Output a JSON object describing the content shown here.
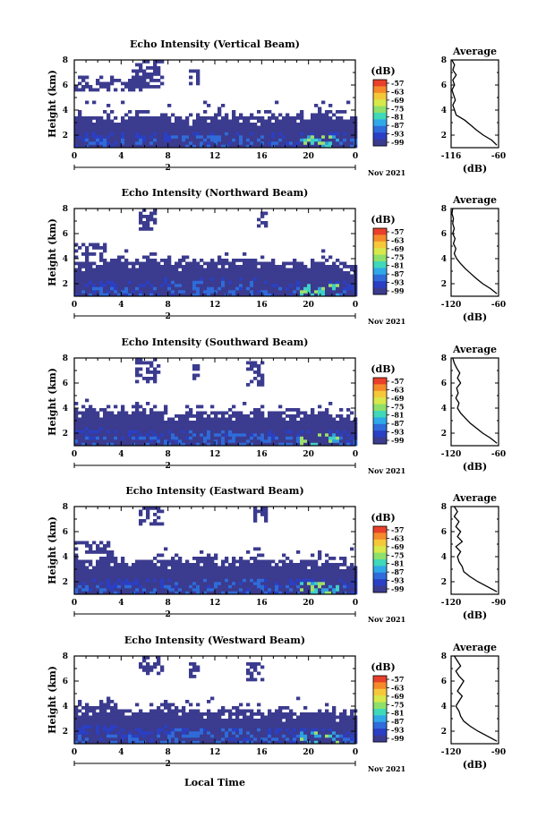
{
  "figure": {
    "x_axis_label": "Local Time",
    "date_label": "Nov 2021",
    "day_label": "2",
    "y_axis_label": "Height (km)",
    "colorbar_unit": "(dB)",
    "average_title": "Average",
    "average_xlabel": "(dB)"
  },
  "chart_data": [
    {
      "type": "heatmap",
      "title": "Echo Intensity (Vertical Beam)",
      "ylabel": "Height (km)",
      "x_ticks": [
        "0",
        "4",
        "8",
        "12",
        "16",
        "20",
        "0"
      ],
      "y_ticks": [
        "2",
        "4",
        "6",
        "8"
      ],
      "xlim": [
        0,
        24
      ],
      "ylim": [
        1,
        8
      ],
      "colorbar_ticks": [
        "-57",
        "-63",
        "-69",
        "-75",
        "-81",
        "-87",
        "-93",
        "-99"
      ],
      "colorbar_range": [
        -99,
        -57
      ],
      "echo_layer_top_km": [
        3.4,
        3.4,
        3.3,
        3.3,
        3.4,
        3.2,
        3.4,
        3.5,
        3.4,
        3.3,
        3.4,
        3.3,
        3.4,
        3.3
      ],
      "upper_patches": [
        {
          "t0": 4.8,
          "t1": 7.5,
          "h0": 5.6,
          "h1": 7.8
        },
        {
          "t0": 9.5,
          "t1": 10.5,
          "h0": 6.0,
          "h1": 7.2
        },
        {
          "t0": 0.0,
          "t1": 6.0,
          "h0": 5.4,
          "h1": 6.6
        }
      ],
      "average": {
        "xlim": [
          -116,
          -60
        ],
        "x_ticks": [
          "-116",
          "-60"
        ],
        "y_ticks": [
          "2",
          "4",
          "6",
          "8"
        ],
        "height_km": [
          1.2,
          1.6,
          2.0,
          2.4,
          2.8,
          3.2,
          3.6,
          4.0,
          4.4,
          4.8,
          5.2,
          5.6,
          6.0,
          6.4,
          6.8,
          7.2,
          7.6,
          8.0
        ],
        "db": [
          -62,
          -68,
          -78,
          -86,
          -93,
          -100,
          -110,
          -112,
          -114,
          -111,
          -113,
          -115,
          -112,
          -114,
          -110,
          -114,
          -112,
          -115
        ]
      }
    },
    {
      "type": "heatmap",
      "title": "Echo Intensity (Northward Beam)",
      "ylabel": "Height (km)",
      "x_ticks": [
        "0",
        "4",
        "8",
        "12",
        "16",
        "20",
        "0"
      ],
      "y_ticks": [
        "2",
        "4",
        "6",
        "8"
      ],
      "xlim": [
        0,
        24
      ],
      "ylim": [
        1,
        8
      ],
      "colorbar_ticks": [
        "-57",
        "-63",
        "-69",
        "-75",
        "-81",
        "-87",
        "-93",
        "-99"
      ],
      "colorbar_range": [
        -99,
        -57
      ],
      "echo_layer_top_km": [
        3.6,
        3.7,
        3.6,
        3.7,
        3.8,
        3.6,
        3.7,
        3.8,
        3.7,
        3.6,
        3.7,
        3.5,
        3.6,
        3.4
      ],
      "upper_patches": [
        {
          "t0": 5.2,
          "t1": 7.0,
          "h0": 6.2,
          "h1": 7.8
        },
        {
          "t0": 15.5,
          "t1": 16.5,
          "h0": 6.4,
          "h1": 7.6
        },
        {
          "t0": 0.0,
          "t1": 2.5,
          "h0": 4.2,
          "h1": 5.0
        }
      ],
      "average": {
        "xlim": [
          -120,
          -60
        ],
        "x_ticks": [
          "-120",
          "-60"
        ],
        "y_ticks": [
          "2",
          "4",
          "6",
          "8"
        ],
        "height_km": [
          1.2,
          1.6,
          2.0,
          2.4,
          2.8,
          3.2,
          3.6,
          4.0,
          4.4,
          4.8,
          5.2,
          5.6,
          6.0,
          6.4,
          6.8,
          7.2,
          7.6,
          8.0
        ],
        "db": [
          -62,
          -70,
          -80,
          -88,
          -95,
          -102,
          -108,
          -113,
          -116,
          -114,
          -117,
          -115,
          -118,
          -116,
          -118,
          -117,
          -119,
          -118
        ]
      }
    },
    {
      "type": "heatmap",
      "title": "Echo Intensity (Southward Beam)",
      "ylabel": "Height (km)",
      "x_ticks": [
        "0",
        "4",
        "8",
        "12",
        "16",
        "20",
        "0"
      ],
      "y_ticks": [
        "2",
        "4",
        "6",
        "8"
      ],
      "xlim": [
        0,
        24
      ],
      "ylim": [
        1,
        8
      ],
      "colorbar_ticks": [
        "-57",
        "-63",
        "-69",
        "-75",
        "-81",
        "-87",
        "-93",
        "-99"
      ],
      "colorbar_range": [
        -99,
        -57
      ],
      "echo_layer_top_km": [
        3.8,
        3.7,
        3.6,
        3.8,
        3.6,
        3.5,
        3.7,
        3.6,
        3.7,
        3.6,
        3.5,
        3.4,
        3.5,
        3.3
      ],
      "upper_patches": [
        {
          "t0": 5.0,
          "t1": 7.2,
          "h0": 6.0,
          "h1": 7.8
        },
        {
          "t0": 9.8,
          "t1": 10.6,
          "h0": 6.2,
          "h1": 7.4
        },
        {
          "t0": 14.5,
          "t1": 16.2,
          "h0": 5.6,
          "h1": 7.6
        }
      ],
      "average": {
        "xlim": [
          -120,
          -60
        ],
        "x_ticks": [
          "-120",
          "-60"
        ],
        "y_ticks": [
          "2",
          "4",
          "6",
          "8"
        ],
        "height_km": [
          1.2,
          1.6,
          2.0,
          2.4,
          2.8,
          3.2,
          3.6,
          4.0,
          4.4,
          4.8,
          5.2,
          5.6,
          6.0,
          6.4,
          6.8,
          7.2,
          7.6,
          8.0
        ],
        "db": [
          -62,
          -70,
          -80,
          -88,
          -96,
          -102,
          -108,
          -112,
          -110,
          -114,
          -111,
          -113,
          -108,
          -112,
          -109,
          -113,
          -116,
          -118
        ]
      }
    },
    {
      "type": "heatmap",
      "title": "Echo Intensity (Eastward Beam)",
      "ylabel": "Height (km)",
      "x_ticks": [
        "0",
        "4",
        "8",
        "12",
        "16",
        "20",
        "0"
      ],
      "y_ticks": [
        "2",
        "4",
        "6",
        "8"
      ],
      "xlim": [
        0,
        24
      ],
      "ylim": [
        1,
        8
      ],
      "colorbar_ticks": [
        "-57",
        "-63",
        "-69",
        "-75",
        "-81",
        "-87",
        "-93",
        "-99"
      ],
      "colorbar_range": [
        -99,
        -57
      ],
      "echo_layer_top_km": [
        3.6,
        3.7,
        3.5,
        3.7,
        3.6,
        3.5,
        3.7,
        3.6,
        3.7,
        3.6,
        3.5,
        3.6,
        3.7,
        3.4
      ],
      "upper_patches": [
        {
          "t0": 5.2,
          "t1": 7.4,
          "h0": 6.4,
          "h1": 7.9
        },
        {
          "t0": 15.2,
          "t1": 16.4,
          "h0": 6.6,
          "h1": 7.9
        },
        {
          "t0": 0.0,
          "t1": 3.0,
          "h0": 4.2,
          "h1": 5.0
        }
      ],
      "average": {
        "xlim": [
          -120,
          -90
        ],
        "x_ticks": [
          "-120",
          "-90"
        ],
        "y_ticks": [
          "2",
          "4",
          "6",
          "8"
        ],
        "height_km": [
          1.2,
          1.6,
          2.0,
          2.4,
          2.8,
          3.2,
          3.6,
          4.0,
          4.4,
          4.8,
          5.2,
          5.6,
          6.0,
          6.4,
          6.8,
          7.2,
          7.6,
          8.0
        ],
        "db": [
          -91,
          -97,
          -103,
          -108,
          -112,
          -113,
          -115,
          -116,
          -114,
          -117,
          -113,
          -116,
          -114,
          -117,
          -115,
          -118,
          -116,
          -118
        ]
      }
    },
    {
      "type": "heatmap",
      "title": "Echo Intensity (Westward Beam)",
      "ylabel": "Height (km)",
      "x_ticks": [
        "0",
        "4",
        "8",
        "12",
        "16",
        "20",
        "0"
      ],
      "y_ticks": [
        "2",
        "4",
        "6",
        "8"
      ],
      "xlim": [
        0,
        24
      ],
      "ylim": [
        1,
        8
      ],
      "colorbar_ticks": [
        "-57",
        "-63",
        "-69",
        "-75",
        "-81",
        "-87",
        "-93",
        "-99"
      ],
      "colorbar_range": [
        -99,
        -57
      ],
      "echo_layer_top_km": [
        3.9,
        4.0,
        3.7,
        3.6,
        3.8,
        3.6,
        3.5,
        3.4,
        3.6,
        3.5,
        3.3,
        3.4,
        3.5,
        3.2
      ],
      "upper_patches": [
        {
          "t0": 5.4,
          "t1": 7.4,
          "h0": 6.4,
          "h1": 7.9
        },
        {
          "t0": 9.6,
          "t1": 10.4,
          "h0": 6.2,
          "h1": 7.4
        },
        {
          "t0": 14.4,
          "t1": 16.2,
          "h0": 5.8,
          "h1": 7.4
        }
      ],
      "average": {
        "xlim": [
          -120,
          -90
        ],
        "x_ticks": [
          "-120",
          "-90"
        ],
        "y_ticks": [
          "2",
          "4",
          "6",
          "8"
        ],
        "height_km": [
          1.2,
          1.6,
          2.0,
          2.4,
          2.8,
          3.2,
          3.6,
          4.0,
          4.4,
          4.8,
          5.2,
          5.6,
          6.0,
          6.4,
          6.8,
          7.2,
          7.6,
          8.0
        ],
        "db": [
          -91,
          -97,
          -103,
          -108,
          -112,
          -114,
          -115,
          -117,
          -115,
          -113,
          -116,
          -114,
          -112,
          -115,
          -117,
          -114,
          -116,
          -118
        ]
      }
    }
  ]
}
